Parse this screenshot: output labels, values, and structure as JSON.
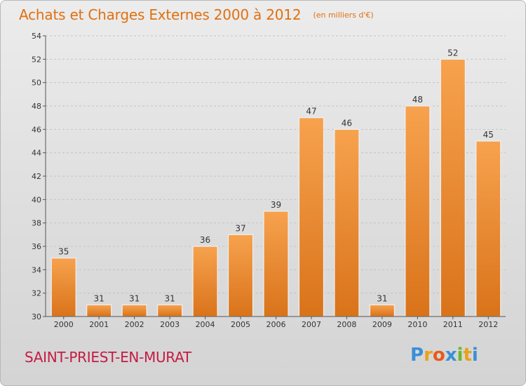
{
  "title": "Achats et Charges Externes 2000 à 2012",
  "unit": "(en milliers d'€)",
  "commune": "SAINT-PRIEST-EN-MURAT",
  "brand": {
    "letters": [
      "P",
      "r",
      "o",
      "x",
      "i",
      "t",
      "i"
    ],
    "colors": [
      "#3a8fd8",
      "#e8a21c",
      "#e85a1a",
      "#3a8fd8",
      "#6ab82c",
      "#e8a21c",
      "#3a8fd8"
    ]
  },
  "colors": {
    "title": "#e07010",
    "commune": "#c41c44",
    "bar_light": "#f7a24e",
    "bar_dark": "#d9731a",
    "axis": "#555555",
    "grid": "#c4c4c4"
  },
  "chart_data": {
    "type": "bar",
    "categories": [
      "2000",
      "2001",
      "2002",
      "2003",
      "2004",
      "2005",
      "2006",
      "2007",
      "2008",
      "2009",
      "2010",
      "2011",
      "2012"
    ],
    "values": [
      35,
      31,
      31,
      31,
      36,
      37,
      39,
      47,
      46,
      31,
      48,
      52,
      45
    ],
    "ylim": [
      30,
      54
    ],
    "yticks": [
      30,
      32,
      34,
      36,
      38,
      40,
      42,
      44,
      46,
      48,
      50,
      52,
      54
    ],
    "grid": "horizontal dashed",
    "title": "Achats et Charges Externes 2000 à 2012",
    "xlabel": "",
    "ylabel": ""
  }
}
